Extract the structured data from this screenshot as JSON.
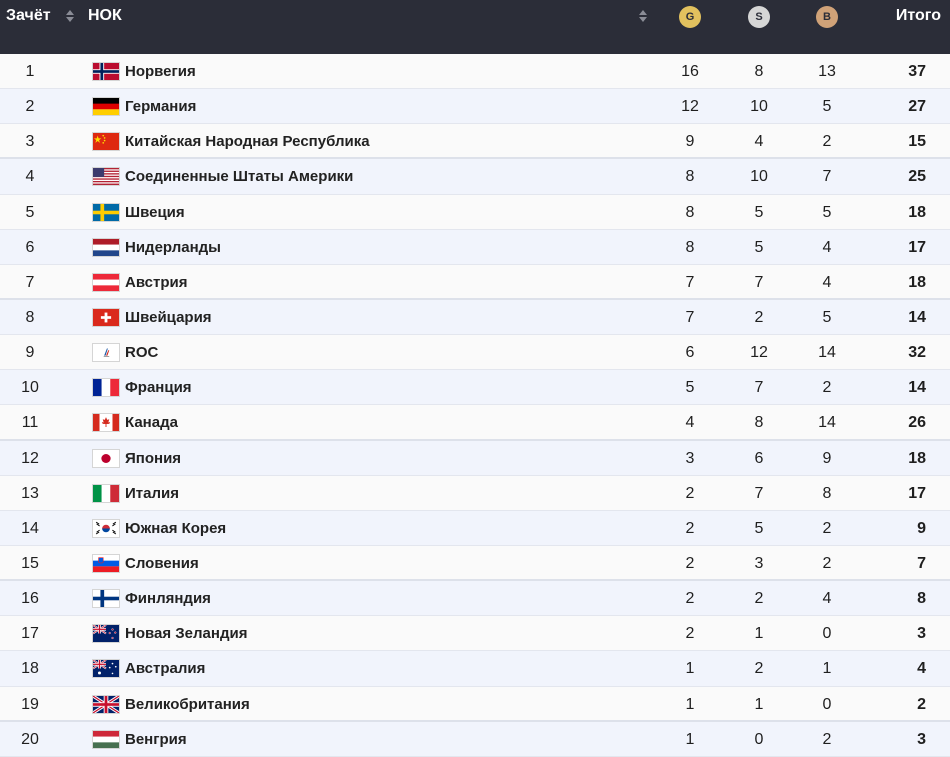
{
  "header": {
    "rank_label": "Зачёт",
    "noc_label": "НОК",
    "gold_label": "G",
    "silver_label": "S",
    "bronze_label": "B",
    "total_label": "Итого"
  },
  "colors": {
    "header_bg": "#2b2d38",
    "gold": "#e2c15e",
    "silver": "#d6d6d6",
    "bronze": "#d0a278",
    "row_alt": "#f1f4fc"
  },
  "rows": [
    {
      "rank": "1",
      "flag": "norway-flag-icon",
      "name": "Норвегия",
      "gold": "16",
      "silver": "8",
      "bronze": "13",
      "total": "37"
    },
    {
      "rank": "2",
      "flag": "germany-flag-icon",
      "name": "Германия",
      "gold": "12",
      "silver": "10",
      "bronze": "5",
      "total": "27"
    },
    {
      "rank": "3",
      "flag": "china-flag-icon",
      "name": "Китайская Народная Республика",
      "gold": "9",
      "silver": "4",
      "bronze": "2",
      "total": "15"
    },
    {
      "rank": "4",
      "flag": "usa-flag-icon",
      "name": "Соединенные Штаты Америки",
      "gold": "8",
      "silver": "10",
      "bronze": "7",
      "total": "25"
    },
    {
      "rank": "5",
      "flag": "sweden-flag-icon",
      "name": "Швеция",
      "gold": "8",
      "silver": "5",
      "bronze": "5",
      "total": "18"
    },
    {
      "rank": "6",
      "flag": "netherlands-flag-icon",
      "name": "Нидерланды",
      "gold": "8",
      "silver": "5",
      "bronze": "4",
      "total": "17"
    },
    {
      "rank": "7",
      "flag": "austria-flag-icon",
      "name": "Австрия",
      "gold": "7",
      "silver": "7",
      "bronze": "4",
      "total": "18"
    },
    {
      "rank": "8",
      "flag": "switzerland-flag-icon",
      "name": "Швейцария",
      "gold": "7",
      "silver": "2",
      "bronze": "5",
      "total": "14"
    },
    {
      "rank": "9",
      "flag": "roc-flag-icon",
      "name": "ROC",
      "gold": "6",
      "silver": "12",
      "bronze": "14",
      "total": "32"
    },
    {
      "rank": "10",
      "flag": "france-flag-icon",
      "name": "Франция",
      "gold": "5",
      "silver": "7",
      "bronze": "2",
      "total": "14"
    },
    {
      "rank": "11",
      "flag": "canada-flag-icon",
      "name": "Канада",
      "gold": "4",
      "silver": "8",
      "bronze": "14",
      "total": "26"
    },
    {
      "rank": "12",
      "flag": "japan-flag-icon",
      "name": "Япония",
      "gold": "3",
      "silver": "6",
      "bronze": "9",
      "total": "18"
    },
    {
      "rank": "13",
      "flag": "italy-flag-icon",
      "name": "Италия",
      "gold": "2",
      "silver": "7",
      "bronze": "8",
      "total": "17"
    },
    {
      "rank": "14",
      "flag": "south-korea-flag-icon",
      "name": "Южная Корея",
      "gold": "2",
      "silver": "5",
      "bronze": "2",
      "total": "9"
    },
    {
      "rank": "15",
      "flag": "slovenia-flag-icon",
      "name": "Словения",
      "gold": "2",
      "silver": "3",
      "bronze": "2",
      "total": "7"
    },
    {
      "rank": "16",
      "flag": "finland-flag-icon",
      "name": "Финляндия",
      "gold": "2",
      "silver": "2",
      "bronze": "4",
      "total": "8"
    },
    {
      "rank": "17",
      "flag": "new-zealand-flag-icon",
      "name": "Новая Зеландия",
      "gold": "2",
      "silver": "1",
      "bronze": "0",
      "total": "3"
    },
    {
      "rank": "18",
      "flag": "australia-flag-icon",
      "name": "Австралия",
      "gold": "1",
      "silver": "2",
      "bronze": "1",
      "total": "4"
    },
    {
      "rank": "19",
      "flag": "uk-flag-icon",
      "name": "Великобритания",
      "gold": "1",
      "silver": "1",
      "bronze": "0",
      "total": "2"
    },
    {
      "rank": "20",
      "flag": "hungary-flag-icon",
      "name": "Венгрия",
      "gold": "1",
      "silver": "0",
      "bronze": "2",
      "total": "3"
    }
  ]
}
